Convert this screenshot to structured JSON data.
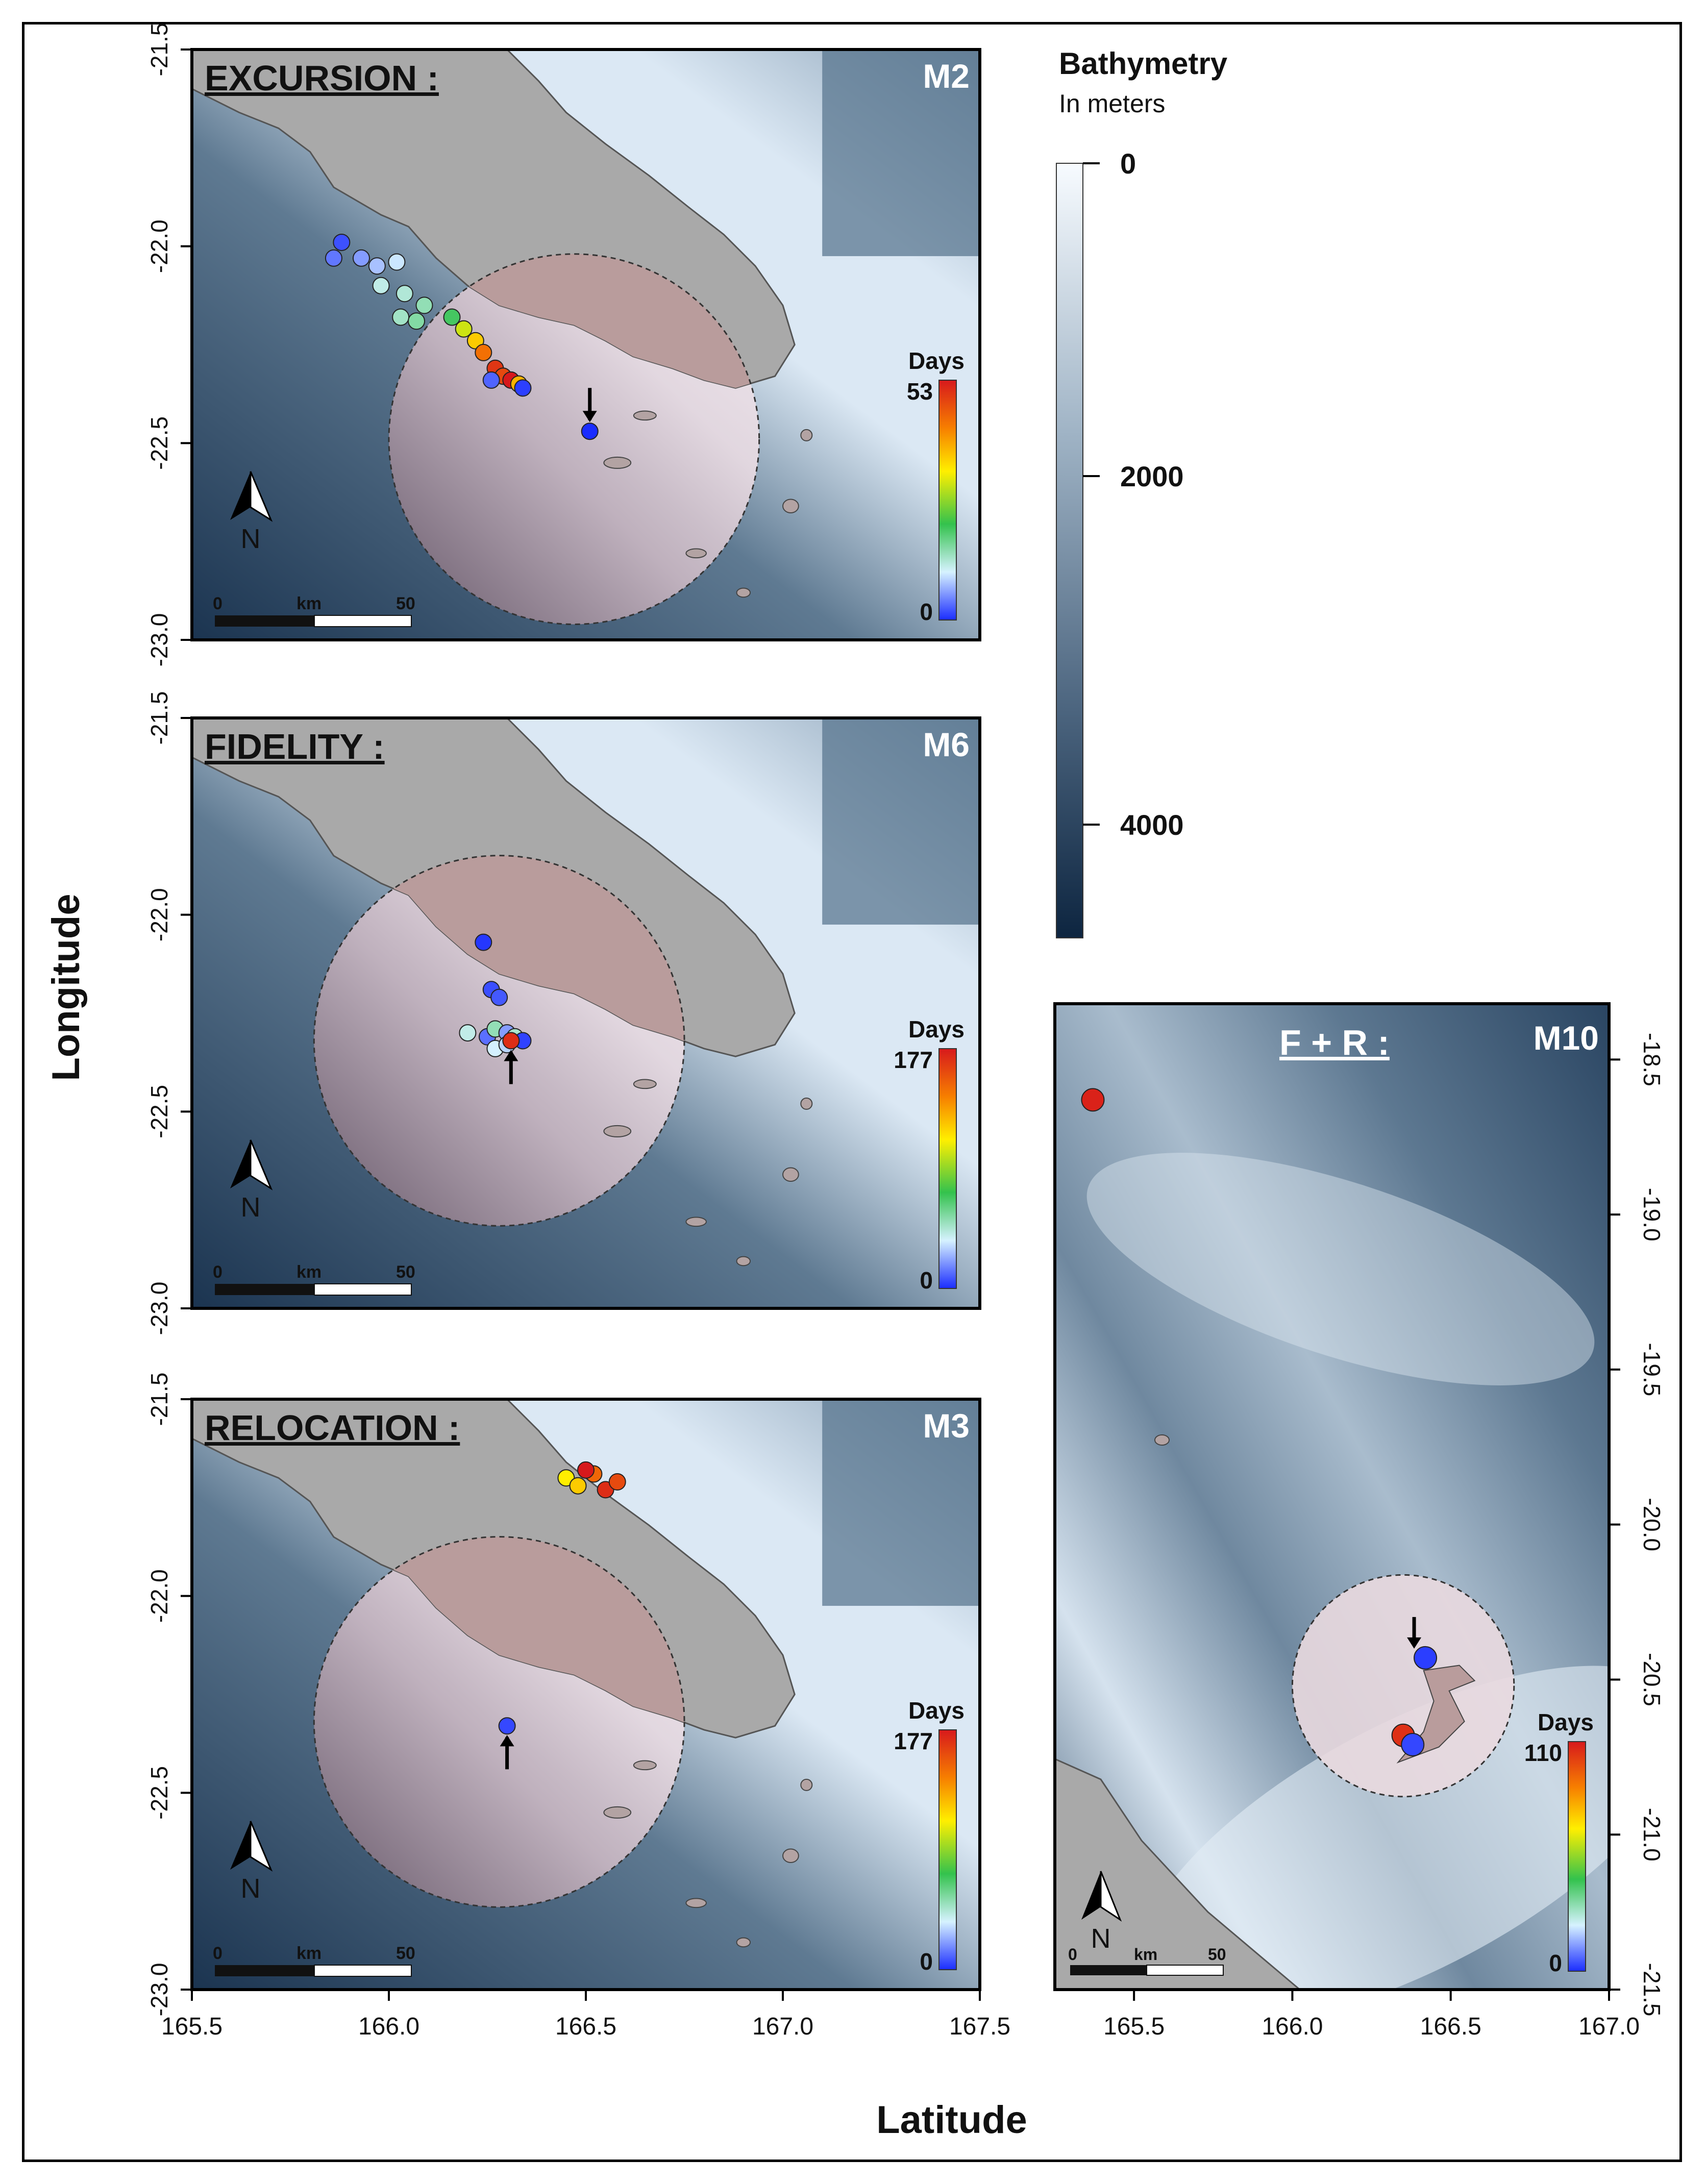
{
  "figure": {
    "y_axis_label": "Longitude",
    "x_axis_label": "Latitude",
    "colors": {
      "land": "#a9a9a9",
      "land_border": "#555555",
      "deep_water": "#1b3450",
      "mid_water": "#5f7a92",
      "shallow_water": "#dbe8f4",
      "zone_fill": "#ecd0d6",
      "zone_land": "#b99c9c"
    }
  },
  "bathymetry_legend": {
    "title": "Bathymetry",
    "unit": "In meters",
    "ticks": [
      "0",
      "2000",
      "4000"
    ]
  },
  "shared_x_ticks": [
    "165.5",
    "166.0",
    "166.5",
    "167.0",
    "167.5"
  ],
  "left_y_ticks": [
    "-21.5",
    "-22.0",
    "-22.5",
    "-23.0"
  ],
  "panels": [
    {
      "id": "M2",
      "category": "EXCURSION :",
      "days_label": "Days",
      "days_max": "53",
      "days_min": "0",
      "scale": {
        "zero": "0",
        "unit": "km",
        "end": "50"
      },
      "north": "N",
      "track": [
        {
          "lon": 165.88,
          "lat": -21.99,
          "day": 2
        },
        {
          "lon": 165.86,
          "lat": -22.03,
          "day": 4
        },
        {
          "lon": 165.93,
          "lat": -22.03,
          "day": 6
        },
        {
          "lon": 165.97,
          "lat": -22.05,
          "day": 8
        },
        {
          "lon": 166.02,
          "lat": -22.04,
          "day": 10
        },
        {
          "lon": 165.98,
          "lat": -22.1,
          "day": 12
        },
        {
          "lon": 166.04,
          "lat": -22.12,
          "day": 13
        },
        {
          "lon": 166.09,
          "lat": -22.15,
          "day": 15
        },
        {
          "lon": 166.03,
          "lat": -22.18,
          "day": 14
        },
        {
          "lon": 166.07,
          "lat": -22.19,
          "day": 16
        },
        {
          "lon": 166.16,
          "lat": -22.18,
          "day": 20
        },
        {
          "lon": 166.19,
          "lat": -22.21,
          "day": 30
        },
        {
          "lon": 166.22,
          "lat": -22.24,
          "day": 36
        },
        {
          "lon": 166.24,
          "lat": -22.27,
          "day": 44
        },
        {
          "lon": 166.27,
          "lat": -22.31,
          "day": 50
        },
        {
          "lon": 166.29,
          "lat": -22.33,
          "day": 48
        },
        {
          "lon": 166.31,
          "lat": -22.34,
          "day": 53
        },
        {
          "lon": 166.33,
          "lat": -22.35,
          "day": 38
        },
        {
          "lon": 166.26,
          "lat": -22.34,
          "day": 3
        },
        {
          "lon": 166.34,
          "lat": -22.36,
          "day": 1
        },
        {
          "lon": 166.51,
          "lat": -22.47,
          "day": 0
        }
      ],
      "zone": {
        "lon": 166.47,
        "lat": -22.49,
        "radius_deg": 0.47
      }
    },
    {
      "id": "M6",
      "category": "FIDELITY :",
      "days_label": "Days",
      "days_max": "177",
      "days_min": "0",
      "scale": {
        "zero": "0",
        "unit": "km",
        "end": "50"
      },
      "north": "N",
      "track": [
        {
          "lon": 166.24,
          "lat": -22.07,
          "day": 2
        },
        {
          "lon": 166.26,
          "lat": -22.19,
          "day": 6
        },
        {
          "lon": 166.28,
          "lat": -22.21,
          "day": 8
        },
        {
          "lon": 166.2,
          "lat": -22.3,
          "day": 40
        },
        {
          "lon": 166.25,
          "lat": -22.31,
          "day": 12
        },
        {
          "lon": 166.27,
          "lat": -22.29,
          "day": 50
        },
        {
          "lon": 166.3,
          "lat": -22.3,
          "day": 20
        },
        {
          "lon": 166.32,
          "lat": -22.31,
          "day": 45
        },
        {
          "lon": 166.34,
          "lat": -22.32,
          "day": 4
        },
        {
          "lon": 166.27,
          "lat": -22.34,
          "day": 35
        },
        {
          "lon": 166.3,
          "lat": -22.33,
          "day": 30
        },
        {
          "lon": 166.31,
          "lat": -22.32,
          "day": 170
        }
      ],
      "zone": {
        "lon": 166.28,
        "lat": -22.32,
        "radius_deg": 0.47
      }
    },
    {
      "id": "M3",
      "category": "RELOCATION :",
      "days_label": "Days",
      "days_max": "177",
      "days_min": "0",
      "scale": {
        "zero": "0",
        "unit": "km",
        "end": "50"
      },
      "north": "N",
      "track": [
        {
          "lon": 166.3,
          "lat": -22.33,
          "day": 5
        },
        {
          "lon": 166.45,
          "lat": -21.7,
          "day": 110
        },
        {
          "lon": 166.48,
          "lat": -21.72,
          "day": 120
        },
        {
          "lon": 166.52,
          "lat": -21.69,
          "day": 150
        },
        {
          "lon": 166.55,
          "lat": -21.73,
          "day": 170
        },
        {
          "lon": 166.58,
          "lat": -21.71,
          "day": 160
        },
        {
          "lon": 166.5,
          "lat": -21.68,
          "day": 177
        }
      ],
      "zone": {
        "lon": 166.28,
        "lat": -22.32,
        "radius_deg": 0.47
      }
    },
    {
      "id": "M10",
      "category": "F + R :",
      "days_label": "Days",
      "days_max": "110",
      "days_min": "0",
      "scale": {
        "zero": "0",
        "unit": "km",
        "end": "50"
      },
      "north": "N",
      "x_ticks": [
        "165.5",
        "166.0",
        "166.5",
        "167.0"
      ],
      "y_ticks": [
        "-18.5",
        "-19.0",
        "-19.5",
        "-20.0",
        "-20.5",
        "-21.0",
        "-21.5"
      ],
      "track": [
        {
          "lon": 165.37,
          "lat": -18.63,
          "day": 108
        },
        {
          "lon": 166.42,
          "lat": -20.43,
          "day": 2
        },
        {
          "lon": 166.35,
          "lat": -20.68,
          "day": 105
        },
        {
          "lon": 166.38,
          "lat": -20.71,
          "day": 3
        }
      ],
      "zone": {
        "lon": 166.35,
        "lat": -20.52,
        "radius_deg": 0.35
      }
    }
  ]
}
